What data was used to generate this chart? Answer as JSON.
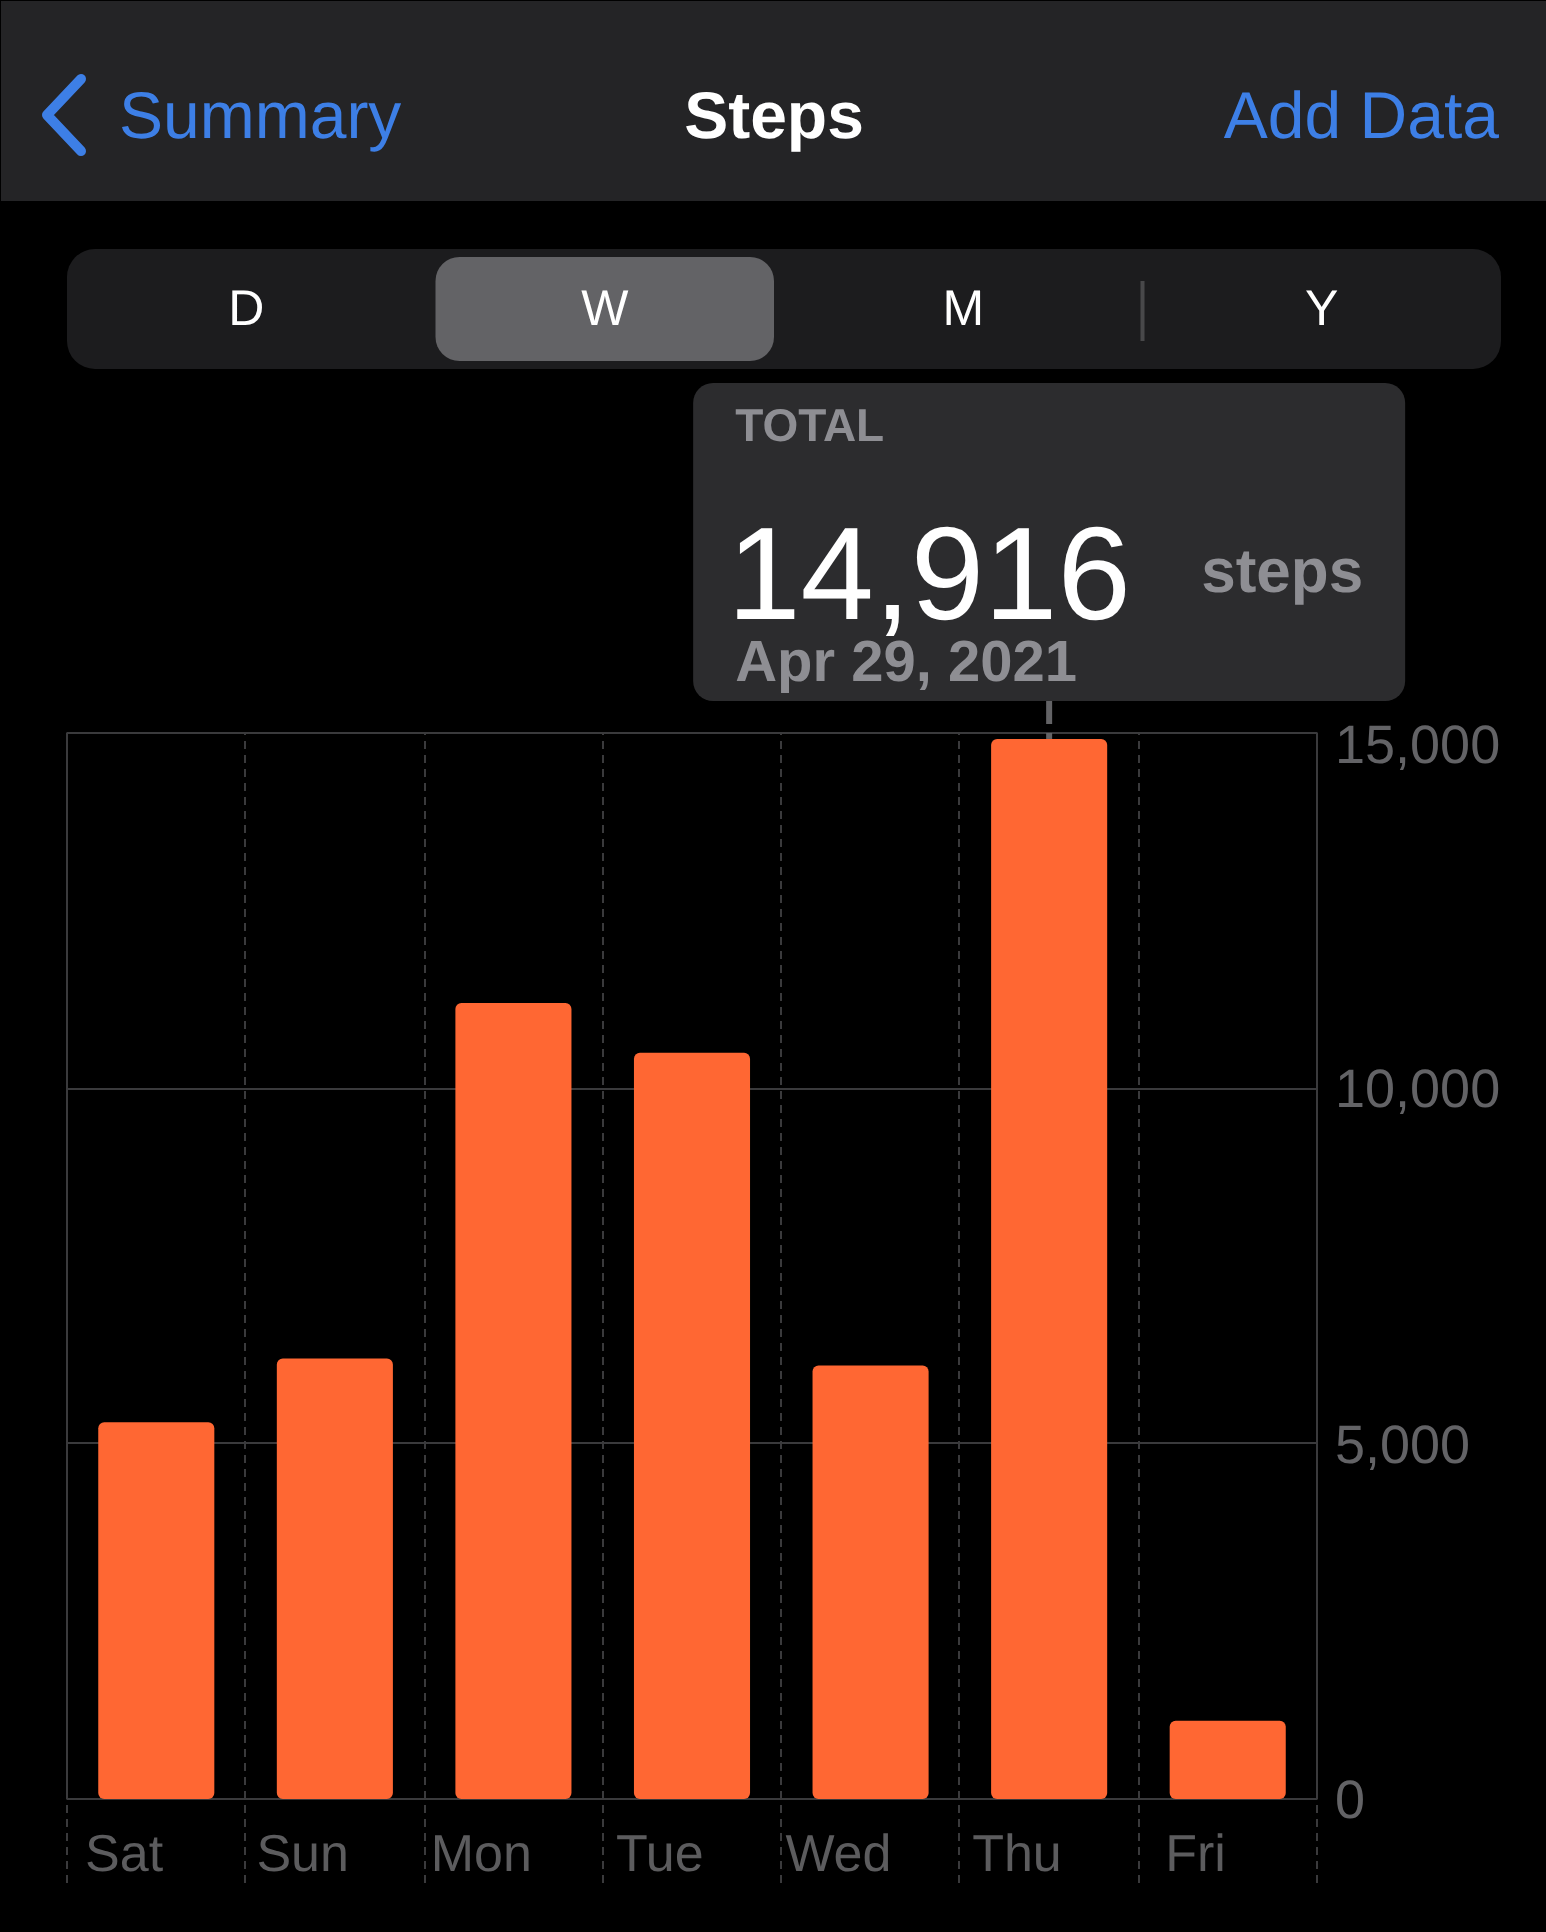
{
  "chart_data": {
    "type": "bar",
    "title": "Steps",
    "categories": [
      "Sat",
      "Sun",
      "Mon",
      "Tue",
      "Wed",
      "Thu",
      "Fri"
    ],
    "values": [
      5300,
      6200,
      11200,
      10500,
      6100,
      14916,
      1100
    ],
    "color": "#ff6733",
    "ylim": [
      0,
      15000
    ],
    "yticks": [
      0,
      {
        "value": 5000,
        "label": "5,000"
      },
      {
        "value": 10000,
        "label": "10,000"
      },
      {
        "value": 15000,
        "label": "15,000"
      }
    ],
    "grid": true,
    "annotations": [
      "Summary",
      "Add Data",
      "D",
      "W",
      "M",
      "Y",
      "TOTAL",
      {
        "text": "14,916",
        "x": "Thu",
        "y": 14916
      },
      "steps",
      "Apr 29, 2021"
    ]
  }
}
